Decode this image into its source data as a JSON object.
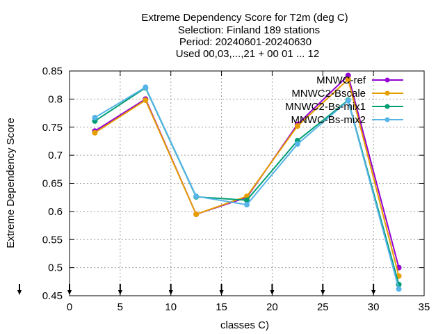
{
  "chart_data": {
    "type": "line",
    "title": [
      "Extreme Dependency Score  for T2m (deg C)",
      "Selection: Finland    189 stations",
      "Period: 20240601-20240630",
      "Used 00,03,...,21 + 00 01 ... 12"
    ],
    "xlabel": "classes C)",
    "ylabel": "Extreme Dependency Score",
    "xlim": [
      0,
      35
    ],
    "ylim": [
      0.45,
      0.85
    ],
    "xticks": [
      "0",
      "5",
      "10",
      "15",
      "20",
      "25",
      "30",
      "35"
    ],
    "yticks": [
      "0.45",
      "0.5",
      "0.55",
      "0.6",
      "0.65",
      "0.7",
      "0.75",
      "0.8",
      "0.85"
    ],
    "grid": true,
    "legend_position": "top-right",
    "x": [
      2.5,
      7.5,
      12.5,
      17.5,
      22.5,
      27.5,
      32.5
    ],
    "series": [
      {
        "name": "MNWC-ref",
        "color": "#9400d3",
        "values": [
          0.743,
          0.8,
          0.595,
          0.625,
          0.755,
          0.842,
          0.5
        ]
      },
      {
        "name": "MNWC2-Bscale",
        "color": "#e69f00",
        "values": [
          0.74,
          0.798,
          0.595,
          0.627,
          0.752,
          0.835,
          0.485
        ]
      },
      {
        "name": "MNWC2-Bs-mix1",
        "color": "#009e73",
        "values": [
          0.761,
          0.82,
          0.626,
          0.62,
          0.726,
          0.798,
          0.47
        ]
      },
      {
        "name": "MNWC-Bs-mix2",
        "color": "#56b4e9",
        "values": [
          0.767,
          0.821,
          0.627,
          0.612,
          0.72,
          0.797,
          0.462
        ]
      }
    ],
    "bottom_arrows_x": [
      0,
      5,
      10,
      15,
      20,
      25,
      30
    ]
  }
}
